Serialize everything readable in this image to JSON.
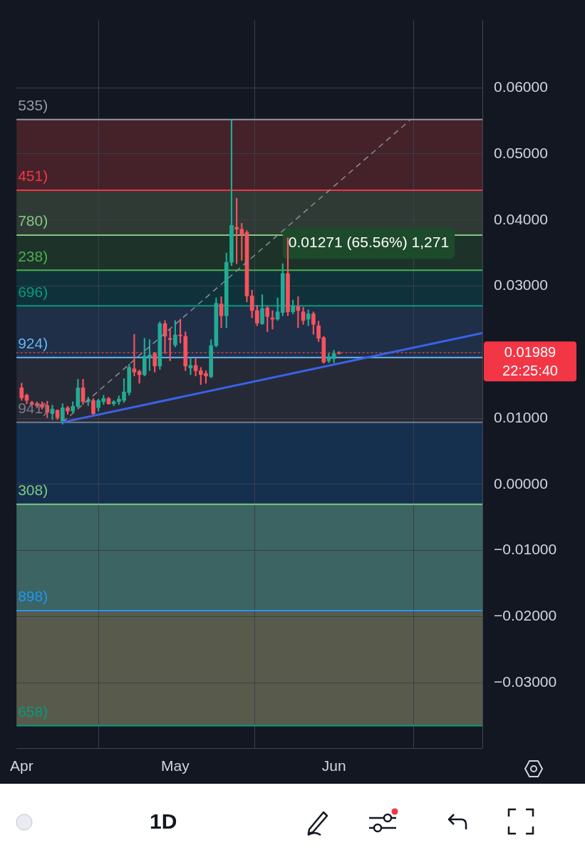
{
  "chart_data": {
    "type": "candlestick",
    "x": [
      "--04-01",
      "--04-02",
      "--04-03",
      "--04-04",
      "--04-05",
      "--04-06",
      "--04-07",
      "--04-08",
      "--04-09",
      "--04-10",
      "--04-11",
      "--04-12",
      "--04-13",
      "--04-14",
      "--04-15",
      "--04-16",
      "--04-17",
      "--04-18",
      "--04-19",
      "--04-20",
      "--04-21",
      "--04-22",
      "--04-23",
      "--04-24",
      "--04-25",
      "--04-26",
      "--04-27",
      "--04-28",
      "--04-29",
      "--04-30",
      "--05-01",
      "--05-02",
      "--05-03",
      "--05-04",
      "--05-05",
      "--05-06",
      "--05-07",
      "--05-08",
      "--05-09",
      "--05-10",
      "--05-11",
      "--05-12",
      "--05-13",
      "--05-14",
      "--05-15",
      "--05-16",
      "--05-17",
      "--05-18",
      "--05-19",
      "--05-20",
      "--05-21",
      "--05-22",
      "--05-23",
      "--05-24",
      "--05-25",
      "--05-26",
      "--05-27",
      "--05-28",
      "--05-29",
      "--05-30",
      "--05-31",
      "--06-01",
      "--06-02"
    ],
    "ohlc": [
      [
        0.0146,
        0.0153,
        0.0127,
        0.0131
      ],
      [
        0.0135,
        0.0137,
        0.0122,
        0.0127
      ],
      [
        0.0124,
        0.0126,
        0.0118,
        0.0121
      ],
      [
        0.0122,
        0.0125,
        0.0116,
        0.0119
      ],
      [
        0.0121,
        0.0125,
        0.0114,
        0.0117
      ],
      [
        0.0119,
        0.0126,
        0.0101,
        0.0109
      ],
      [
        0.0107,
        0.012,
        0.0098,
        0.0114
      ],
      [
        0.0112,
        0.0113,
        0.0098,
        0.0101
      ],
      [
        0.0096,
        0.0122,
        0.0091,
        0.0116
      ],
      [
        0.0116,
        0.0118,
        0.0106,
        0.0111
      ],
      [
        0.0111,
        0.0125,
        0.0109,
        0.0118
      ],
      [
        0.0118,
        0.0159,
        0.0116,
        0.0146
      ],
      [
        0.0146,
        0.0159,
        0.0121,
        0.0125
      ],
      [
        0.0125,
        0.0132,
        0.0119,
        0.0128
      ],
      [
        0.0127,
        0.013,
        0.0104,
        0.0107
      ],
      [
        0.0116,
        0.0129,
        0.0111,
        0.0127
      ],
      [
        0.0125,
        0.0135,
        0.0121,
        0.013
      ],
      [
        0.013,
        0.0132,
        0.0121,
        0.0122
      ],
      [
        0.0122,
        0.0127,
        0.0119,
        0.0125
      ],
      [
        0.0125,
        0.0134,
        0.0121,
        0.0129
      ],
      [
        0.0127,
        0.016,
        0.0124,
        0.014
      ],
      [
        0.0139,
        0.0182,
        0.0135,
        0.0177
      ],
      [
        0.0175,
        0.0227,
        0.0164,
        0.017
      ],
      [
        0.0171,
        0.0173,
        0.0153,
        0.0166
      ],
      [
        0.0166,
        0.0221,
        0.0164,
        0.0194
      ],
      [
        0.0193,
        0.0219,
        0.0172,
        0.0196
      ],
      [
        0.0198,
        0.02,
        0.017,
        0.0179
      ],
      [
        0.0179,
        0.0246,
        0.0174,
        0.0243
      ],
      [
        0.0243,
        0.0248,
        0.0198,
        0.0224
      ],
      [
        0.0221,
        0.0235,
        0.0187,
        0.0219
      ],
      [
        0.0211,
        0.0248,
        0.0208,
        0.0226
      ],
      [
        0.0226,
        0.025,
        0.0214,
        0.0225
      ],
      [
        0.0224,
        0.0231,
        0.0172,
        0.0179
      ],
      [
        0.0176,
        0.0191,
        0.0166,
        0.018
      ],
      [
        0.018,
        0.019,
        0.0164,
        0.0172
      ],
      [
        0.0172,
        0.0177,
        0.0151,
        0.0166
      ],
      [
        0.0168,
        0.0172,
        0.0153,
        0.0164
      ],
      [
        0.0163,
        0.0219,
        0.0161,
        0.021
      ],
      [
        0.021,
        0.0282,
        0.0208,
        0.0274
      ],
      [
        0.0273,
        0.0284,
        0.0237,
        0.0255
      ],
      [
        0.0255,
        0.035,
        0.0237,
        0.0336
      ],
      [
        0.0336,
        0.0552,
        0.0331,
        0.0392
      ],
      [
        0.0389,
        0.0433,
        0.0334,
        0.0386
      ],
      [
        0.0386,
        0.0395,
        0.0339,
        0.0378
      ],
      [
        0.0381,
        0.0384,
        0.0276,
        0.0285
      ],
      [
        0.0285,
        0.0294,
        0.0252,
        0.0263
      ],
      [
        0.0263,
        0.0271,
        0.024,
        0.0244
      ],
      [
        0.0243,
        0.0287,
        0.0242,
        0.0266
      ],
      [
        0.0267,
        0.0269,
        0.0231,
        0.0254
      ],
      [
        0.0252,
        0.0263,
        0.0235,
        0.025
      ],
      [
        0.025,
        0.0282,
        0.0248,
        0.0261
      ],
      [
        0.026,
        0.0334,
        0.0255,
        0.0319
      ],
      [
        0.0319,
        0.0373,
        0.0255,
        0.0261
      ],
      [
        0.0261,
        0.0279,
        0.0258,
        0.027
      ],
      [
        0.0269,
        0.0284,
        0.0237,
        0.0263
      ],
      [
        0.0261,
        0.0268,
        0.0242,
        0.0248
      ],
      [
        0.025,
        0.0264,
        0.024,
        0.0258
      ],
      [
        0.0258,
        0.0261,
        0.0227,
        0.0242
      ],
      [
        0.024,
        0.0247,
        0.0216,
        0.0221
      ],
      [
        0.0222,
        0.0224,
        0.0183,
        0.0185
      ],
      [
        0.0187,
        0.0198,
        0.0184,
        0.0193
      ],
      [
        0.019,
        0.0203,
        0.0184,
        0.0198
      ],
      [
        0.0199,
        0.0201,
        0.0197,
        0.0198
      ]
    ],
    "colors": [
      "#f7525f",
      "#f7525f",
      "#f7525f",
      "#f7525f",
      "#f7525f",
      "#f7525f",
      "#22ab94",
      "#f7525f",
      "#22ab94",
      "#f7525f",
      "#22ab94",
      "#22ab94",
      "#f7525f",
      "#22ab94",
      "#f7525f",
      "#22ab94",
      "#22ab94",
      "#f7525f",
      "#22ab94",
      "#22ab94",
      "#22ab94",
      "#22ab94",
      "#f7525f",
      "#f7525f",
      "#22ab94",
      "#22ab94",
      "#f7525f",
      "#22ab94",
      "#f7525f",
      "#f7525f",
      "#22ab94",
      "#f7525f",
      "#f7525f",
      "#22ab94",
      "#f7525f",
      "#f7525f",
      "#f7525f",
      "#22ab94",
      "#22ab94",
      "#f7525f",
      "#22ab94",
      "#22ab94",
      "#f7525f",
      "#f7525f",
      "#f7525f",
      "#f7525f",
      "#f7525f",
      "#22ab94",
      "#f7525f",
      "#f7525f",
      "#22ab94",
      "#22ab94",
      "#f7525f",
      "#22ab94",
      "#f7525f",
      "#f7525f",
      "#22ab94",
      "#f7525f",
      "#f7525f",
      "#f7525f",
      "#22ab94",
      "#22ab94",
      "#f7525f"
    ],
    "series": [
      {
        "type": "line",
        "color": "#3a62e8",
        "x": [
          "--04-09",
          "--06-30"
        ],
        "values": [
          0.0094,
          0.0229
        ]
      },
      {
        "type": "line",
        "color": "#8a8d96",
        "line_style": "dashed",
        "x": [
          "--04-09",
          "--06-16"
        ],
        "values": [
          0.0094,
          0.0552
        ]
      }
    ],
    "xlim": [
      "--03-31",
      "--06-30"
    ],
    "xticks": [
      {
        "value": "--04-01",
        "label": "Apr"
      },
      {
        "value": "--05-01",
        "label": "May"
      },
      {
        "value": "--06-01",
        "label": "Jun"
      }
    ],
    "ylim": [
      -0.0399,
      0.0702
    ],
    "yticks": [
      {
        "value": 0.06,
        "label": "0.06000"
      },
      {
        "value": 0.05,
        "label": "0.05000"
      },
      {
        "value": 0.04,
        "label": "0.04000"
      },
      {
        "value": 0.03,
        "label": "0.03000"
      },
      {
        "value": 0.02,
        "label": null
      },
      {
        "value": 0.01,
        "label": "0.01000"
      },
      {
        "value": 0,
        "label": "0.00000"
      },
      {
        "value": -0.01,
        "label": "−0.01000"
      },
      {
        "value": -0.02,
        "label": "−0.02000"
      },
      {
        "value": -0.03,
        "label": "−0.03000"
      }
    ],
    "grid": true,
    "bands": [
      {
        "axis": "y",
        "from": 0.0445,
        "to": 0.0552,
        "color": "#45222a"
      },
      {
        "axis": "y",
        "from": 0.0377,
        "to": 0.0445,
        "color": "#2f3a35"
      },
      {
        "axis": "y",
        "from": 0.0324,
        "to": 0.0377,
        "color": "#1d3329"
      },
      {
        "axis": "y",
        "from": 0.027,
        "to": 0.0324,
        "color": "#0f323a"
      },
      {
        "axis": "y",
        "from": 0.0192,
        "to": 0.027,
        "color": "#1f2f48"
      },
      {
        "axis": "y",
        "from": 0.0094,
        "to": 0.0192,
        "color": "#262a36"
      },
      {
        "axis": "y",
        "from": -0.003,
        "to": 0.0094,
        "color": "#15304f"
      },
      {
        "axis": "y",
        "from": -0.0191,
        "to": -0.003,
        "color": "#3b6462"
      },
      {
        "axis": "y",
        "from": -0.0365,
        "to": -0.0191,
        "color": "#585b4b"
      }
    ],
    "ref_lines": [
      {
        "axis": "y",
        "value": 0.0552,
        "color": "#9598a1"
      },
      {
        "axis": "y",
        "value": 0.0445,
        "color": "#f23645"
      },
      {
        "axis": "y",
        "value": 0.0377,
        "color": "#81c784"
      },
      {
        "axis": "y",
        "value": 0.0324,
        "color": "#4caf50"
      },
      {
        "axis": "y",
        "value": 0.027,
        "color": "#089981"
      },
      {
        "axis": "y",
        "value": 0.0192,
        "color": "#64b5f6"
      },
      {
        "axis": "y",
        "value": 0.0094,
        "color": "#787b86"
      },
      {
        "axis": "y",
        "value": -0.003,
        "color": "#81c784"
      },
      {
        "axis": "y",
        "value": -0.0191,
        "color": "#2196f3"
      },
      {
        "axis": "y",
        "value": -0.0365,
        "color": "#089981"
      },
      {
        "axis": "y",
        "value": 0.01989,
        "label": "0.01989",
        "color": "#f23645",
        "line_style": "dotted"
      }
    ],
    "annotations": [
      "0.01271 (65.56%) 1,271",
      "22:25:40",
      "1D",
      "535)",
      "451)",
      "780)",
      "238)",
      "696)",
      "924)",
      "941)",
      "308)",
      "898)",
      "658)"
    ]
  }
}
